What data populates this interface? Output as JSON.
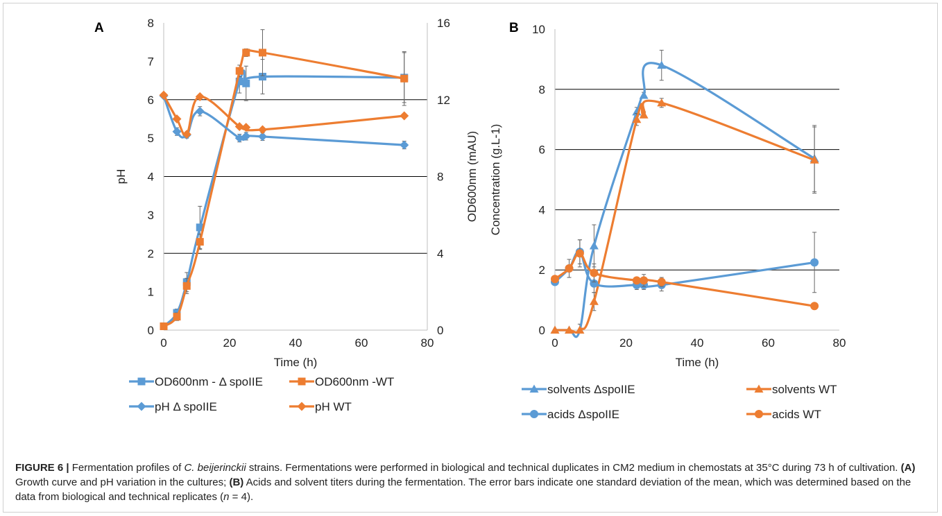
{
  "colors": {
    "blue": "#5b9bd5",
    "orange": "#ed7d31",
    "grid": "#000000",
    "axis": "#bfbfbf",
    "error": "#666666"
  },
  "caption": {
    "lead": "FIGURE 6 |",
    "p1": " Fermentation profiles of ",
    "species": "C. beijerinckii",
    "p2": " strains. Fermentations were performed in biological and technical duplicates in CM2 medium in chemostats at 35°C during 73 h of cultivation. ",
    "a_label": "(A)",
    "p3": " Growth curve and pH variation in the cultures; ",
    "b_label": "(B)",
    "p4": " Acids and solvent titers during the fermentation. The error bars indicate one standard deviation of the mean, which was determined based on the data from biological and technical replicates (",
    "n_sym": "n",
    "p5": " = 4)."
  },
  "chart_data": [
    {
      "panel": "A",
      "type": "line",
      "xlabel": "Time (h)",
      "ylabel": "pH",
      "y2label": "OD600nm (mAU)",
      "xlim": [
        0,
        80
      ],
      "ylim": [
        0,
        8
      ],
      "y2lim": [
        0,
        16
      ],
      "xticks": [
        0,
        20,
        40,
        60,
        80
      ],
      "yticks": [
        0,
        1,
        2,
        3,
        4,
        5,
        6,
        7,
        8
      ],
      "y2ticks": [
        0,
        4,
        8,
        12,
        16
      ],
      "grid": "horizontal at 2, 4, 6",
      "legend": "bottom",
      "series": [
        {
          "name": "OD600nm - Δ spoIIE",
          "axis": "right",
          "color": "blue",
          "marker": "square",
          "x": [
            0,
            4,
            7,
            11,
            23,
            25,
            30,
            73
          ],
          "y": [
            0.2,
            0.9,
            2.5,
            5.35,
            12.95,
            12.85,
            13.2,
            13.15
          ],
          "err": [
            0.1,
            0.2,
            0.5,
            1.1,
            0.6,
            0.9,
            0.9,
            1.3
          ]
        },
        {
          "name": "OD600nm -WT",
          "axis": "right",
          "color": "orange",
          "marker": "square",
          "x": [
            0,
            4,
            7,
            11,
            23,
            25,
            30,
            73
          ],
          "y": [
            0.2,
            0.7,
            2.3,
            4.6,
            13.5,
            14.45,
            14.45,
            13.1
          ],
          "err": [
            0.1,
            0.2,
            0.4,
            0.4,
            0.3,
            0.2,
            1.2,
            1.4
          ]
        },
        {
          "name": "pH Δ spoIIE",
          "axis": "left",
          "color": "blue",
          "marker": "diamond",
          "x": [
            0,
            4,
            7,
            11,
            23,
            25,
            30,
            73
          ],
          "y": [
            6.1,
            5.17,
            5.08,
            5.7,
            5.0,
            5.05,
            5.04,
            4.82
          ],
          "err": [
            0.05,
            0.1,
            0.08,
            0.12,
            0.1,
            0.1,
            0.1,
            0.1
          ]
        },
        {
          "name": "pH WT",
          "axis": "left",
          "color": "orange",
          "marker": "diamond",
          "x": [
            0,
            4,
            7,
            11,
            23,
            25,
            30,
            73
          ],
          "y": [
            6.12,
            5.5,
            5.1,
            6.08,
            5.3,
            5.28,
            5.22,
            5.58
          ],
          "err": [
            0.04,
            0.05,
            0.05,
            0.05,
            0.05,
            0.05,
            0.05,
            0.05
          ]
        }
      ]
    },
    {
      "panel": "B",
      "type": "line",
      "xlabel": "Time (h)",
      "ylabel": "Concentration (g.L-1)",
      "xlim": [
        0,
        80
      ],
      "ylim": [
        0,
        10
      ],
      "xticks": [
        0,
        20,
        40,
        60,
        80
      ],
      "yticks": [
        0,
        2,
        4,
        6,
        8,
        10
      ],
      "grid": "horizontal at 2, 4, 6, 8",
      "legend": "bottom",
      "series": [
        {
          "name": "solvents ΔspoIIE",
          "color": "blue",
          "marker": "triangle",
          "x": [
            0,
            4,
            7,
            11,
            23,
            25,
            30,
            73
          ],
          "y": [
            0.0,
            0.0,
            0.0,
            2.8,
            7.25,
            7.8,
            8.8,
            5.7
          ],
          "err": [
            0,
            0,
            0.2,
            0.7,
            0.15,
            0.1,
            0.5,
            1.1
          ]
        },
        {
          "name": "solvents WT",
          "color": "orange",
          "marker": "triangle",
          "x": [
            0,
            4,
            7,
            11,
            23,
            25,
            30,
            73
          ],
          "y": [
            0.0,
            0.0,
            0.0,
            0.95,
            7.0,
            7.15,
            7.55,
            5.65
          ],
          "err": [
            0,
            0,
            0,
            0.3,
            0.2,
            0.1,
            0.15,
            1.1
          ]
        },
        {
          "name": "acids ΔspoIIE",
          "color": "blue",
          "marker": "circle",
          "x": [
            0,
            4,
            7,
            11,
            23,
            25,
            30,
            73
          ],
          "y": [
            1.6,
            2.05,
            2.6,
            1.55,
            1.5,
            1.5,
            1.5,
            2.25
          ],
          "err": [
            0.1,
            0.3,
            0.4,
            0.3,
            0.15,
            0.15,
            0.2,
            1.0
          ]
        },
        {
          "name": "acids WT",
          "color": "orange",
          "marker": "circle",
          "x": [
            0,
            4,
            7,
            11,
            23,
            25,
            30,
            73
          ],
          "y": [
            1.7,
            2.05,
            2.55,
            1.9,
            1.65,
            1.65,
            1.6,
            0.8
          ],
          "err": [
            0.1,
            0.3,
            0.45,
            0.3,
            0.1,
            0.2,
            0.15,
            0.05
          ]
        }
      ]
    }
  ]
}
